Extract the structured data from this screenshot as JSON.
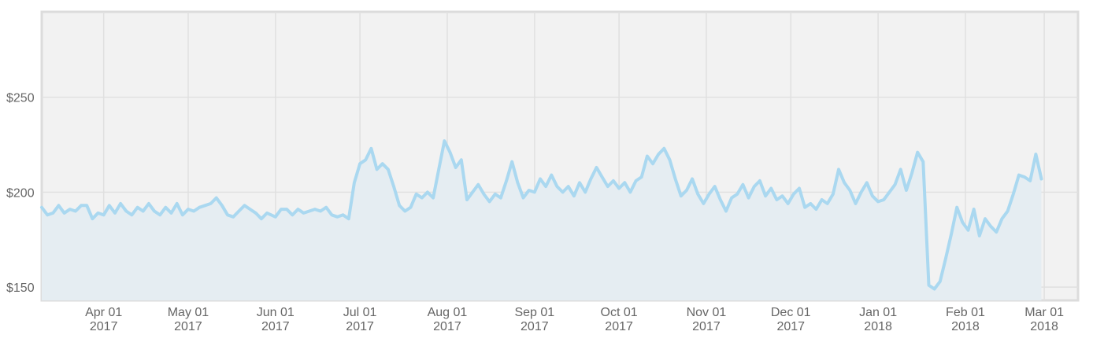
{
  "chart_data": {
    "type": "area",
    "title": "",
    "xlabel": "",
    "ylabel": "",
    "y_prefix": "$",
    "ylim": [
      143,
      295
    ],
    "xlim": [
      "2017-03-10",
      "2018-03-13"
    ],
    "grid": true,
    "yticks": [
      {
        "value": 150,
        "label": "$150"
      },
      {
        "value": 200,
        "label": "$200"
      },
      {
        "value": 250,
        "label": "$250"
      }
    ],
    "xticks": [
      {
        "date": "2017-04-01",
        "month": "Apr 01",
        "year": "2017"
      },
      {
        "date": "2017-05-01",
        "month": "May 01",
        "year": "2017"
      },
      {
        "date": "2017-06-01",
        "month": "Jun 01",
        "year": "2017"
      },
      {
        "date": "2017-07-01",
        "month": "Jul 01",
        "year": "2017"
      },
      {
        "date": "2017-08-01",
        "month": "Aug 01",
        "year": "2017"
      },
      {
        "date": "2017-09-01",
        "month": "Sep 01",
        "year": "2017"
      },
      {
        "date": "2017-10-01",
        "month": "Oct 01",
        "year": "2017"
      },
      {
        "date": "2017-11-01",
        "month": "Nov 01",
        "year": "2017"
      },
      {
        "date": "2017-12-01",
        "month": "Dec 01",
        "year": "2017"
      },
      {
        "date": "2018-01-01",
        "month": "Jan 01",
        "year": "2018"
      },
      {
        "date": "2018-02-01",
        "month": "Feb 01",
        "year": "2018"
      },
      {
        "date": "2018-03-01",
        "month": "Mar 01",
        "year": "2018"
      }
    ],
    "colors": {
      "line": "#aad8f0",
      "area": "#e5edf2",
      "plot_bg": "#f2f2f2",
      "grid": "#e0e0e0",
      "border": "#dcdcdc"
    },
    "series": [
      {
        "points": [
          [
            "2017-03-10",
            192
          ],
          [
            "2017-03-12",
            188
          ],
          [
            "2017-03-14",
            189
          ],
          [
            "2017-03-16",
            193
          ],
          [
            "2017-03-18",
            189
          ],
          [
            "2017-03-20",
            191
          ],
          [
            "2017-03-22",
            190
          ],
          [
            "2017-03-24",
            193
          ],
          [
            "2017-03-26",
            193
          ],
          [
            "2017-03-28",
            186
          ],
          [
            "2017-03-30",
            189
          ],
          [
            "2017-04-01",
            188
          ],
          [
            "2017-04-03",
            193
          ],
          [
            "2017-04-05",
            189
          ],
          [
            "2017-04-07",
            194
          ],
          [
            "2017-04-09",
            190
          ],
          [
            "2017-04-11",
            188
          ],
          [
            "2017-04-13",
            192
          ],
          [
            "2017-04-15",
            190
          ],
          [
            "2017-04-17",
            194
          ],
          [
            "2017-04-19",
            190
          ],
          [
            "2017-04-21",
            188
          ],
          [
            "2017-04-23",
            192
          ],
          [
            "2017-04-25",
            189
          ],
          [
            "2017-04-27",
            194
          ],
          [
            "2017-04-29",
            188
          ],
          [
            "2017-05-01",
            191
          ],
          [
            "2017-05-03",
            190
          ],
          [
            "2017-05-05",
            192
          ],
          [
            "2017-05-07",
            193
          ],
          [
            "2017-05-09",
            194
          ],
          [
            "2017-05-11",
            197
          ],
          [
            "2017-05-13",
            193
          ],
          [
            "2017-05-15",
            188
          ],
          [
            "2017-05-17",
            187
          ],
          [
            "2017-05-19",
            190
          ],
          [
            "2017-05-21",
            193
          ],
          [
            "2017-05-23",
            191
          ],
          [
            "2017-05-25",
            189
          ],
          [
            "2017-05-27",
            186
          ],
          [
            "2017-05-29",
            189
          ],
          [
            "2017-06-01",
            187
          ],
          [
            "2017-06-03",
            191
          ],
          [
            "2017-06-05",
            191
          ],
          [
            "2017-06-07",
            188
          ],
          [
            "2017-06-09",
            191
          ],
          [
            "2017-06-11",
            189
          ],
          [
            "2017-06-13",
            190
          ],
          [
            "2017-06-15",
            191
          ],
          [
            "2017-06-17",
            190
          ],
          [
            "2017-06-19",
            192
          ],
          [
            "2017-06-21",
            188
          ],
          [
            "2017-06-23",
            187
          ],
          [
            "2017-06-25",
            188
          ],
          [
            "2017-06-27",
            186
          ],
          [
            "2017-06-29",
            205
          ],
          [
            "2017-07-01",
            215
          ],
          [
            "2017-07-03",
            217
          ],
          [
            "2017-07-05",
            223
          ],
          [
            "2017-07-07",
            212
          ],
          [
            "2017-07-09",
            215
          ],
          [
            "2017-07-11",
            212
          ],
          [
            "2017-07-13",
            203
          ],
          [
            "2017-07-15",
            193
          ],
          [
            "2017-07-17",
            190
          ],
          [
            "2017-07-19",
            192
          ],
          [
            "2017-07-21",
            199
          ],
          [
            "2017-07-23",
            197
          ],
          [
            "2017-07-25",
            200
          ],
          [
            "2017-07-27",
            197
          ],
          [
            "2017-07-29",
            212
          ],
          [
            "2017-07-31",
            227
          ],
          [
            "2017-08-02",
            221
          ],
          [
            "2017-08-04",
            213
          ],
          [
            "2017-08-06",
            217
          ],
          [
            "2017-08-08",
            196
          ],
          [
            "2017-08-10",
            200
          ],
          [
            "2017-08-12",
            204
          ],
          [
            "2017-08-14",
            199
          ],
          [
            "2017-08-16",
            195
          ],
          [
            "2017-08-18",
            199
          ],
          [
            "2017-08-20",
            197
          ],
          [
            "2017-08-22",
            206
          ],
          [
            "2017-08-24",
            216
          ],
          [
            "2017-08-26",
            205
          ],
          [
            "2017-08-28",
            197
          ],
          [
            "2017-08-30",
            201
          ],
          [
            "2017-09-01",
            200
          ],
          [
            "2017-09-03",
            207
          ],
          [
            "2017-09-05",
            203
          ],
          [
            "2017-09-07",
            209
          ],
          [
            "2017-09-09",
            203
          ],
          [
            "2017-09-11",
            200
          ],
          [
            "2017-09-13",
            203
          ],
          [
            "2017-09-15",
            198
          ],
          [
            "2017-09-17",
            205
          ],
          [
            "2017-09-19",
            200
          ],
          [
            "2017-09-21",
            207
          ],
          [
            "2017-09-23",
            213
          ],
          [
            "2017-09-25",
            208
          ],
          [
            "2017-09-27",
            203
          ],
          [
            "2017-09-29",
            206
          ],
          [
            "2017-10-01",
            202
          ],
          [
            "2017-10-03",
            205
          ],
          [
            "2017-10-05",
            200
          ],
          [
            "2017-10-07",
            206
          ],
          [
            "2017-10-09",
            208
          ],
          [
            "2017-10-11",
            219
          ],
          [
            "2017-10-13",
            215
          ],
          [
            "2017-10-15",
            220
          ],
          [
            "2017-10-17",
            223
          ],
          [
            "2017-10-19",
            217
          ],
          [
            "2017-10-21",
            207
          ],
          [
            "2017-10-23",
            198
          ],
          [
            "2017-10-25",
            201
          ],
          [
            "2017-10-27",
            207
          ],
          [
            "2017-10-29",
            199
          ],
          [
            "2017-10-31",
            194
          ],
          [
            "2017-11-02",
            199
          ],
          [
            "2017-11-04",
            203
          ],
          [
            "2017-11-06",
            196
          ],
          [
            "2017-11-08",
            190
          ],
          [
            "2017-11-10",
            197
          ],
          [
            "2017-11-12",
            199
          ],
          [
            "2017-11-14",
            204
          ],
          [
            "2017-11-16",
            197
          ],
          [
            "2017-11-18",
            203
          ],
          [
            "2017-11-20",
            206
          ],
          [
            "2017-11-22",
            198
          ],
          [
            "2017-11-24",
            202
          ],
          [
            "2017-11-26",
            196
          ],
          [
            "2017-11-28",
            198
          ],
          [
            "2017-11-30",
            194
          ],
          [
            "2017-12-02",
            199
          ],
          [
            "2017-12-04",
            202
          ],
          [
            "2017-12-06",
            192
          ],
          [
            "2017-12-08",
            194
          ],
          [
            "2017-12-10",
            191
          ],
          [
            "2017-12-12",
            196
          ],
          [
            "2017-12-14",
            194
          ],
          [
            "2017-12-16",
            199
          ],
          [
            "2017-12-18",
            212
          ],
          [
            "2017-12-20",
            205
          ],
          [
            "2017-12-22",
            201
          ],
          [
            "2017-12-24",
            194
          ],
          [
            "2017-12-26",
            200
          ],
          [
            "2017-12-28",
            205
          ],
          [
            "2017-12-30",
            198
          ],
          [
            "2018-01-01",
            195
          ],
          [
            "2018-01-03",
            196
          ],
          [
            "2018-01-05",
            200
          ],
          [
            "2018-01-07",
            204
          ],
          [
            "2018-01-09",
            212
          ],
          [
            "2018-01-11",
            201
          ],
          [
            "2018-01-13",
            210
          ],
          [
            "2018-01-15",
            221
          ],
          [
            "2018-01-17",
            216
          ],
          [
            "2018-01-19",
            151
          ],
          [
            "2018-01-21",
            149
          ],
          [
            "2018-01-23",
            153
          ],
          [
            "2018-01-25",
            165
          ],
          [
            "2018-01-27",
            178
          ],
          [
            "2018-01-29",
            192
          ],
          [
            "2018-01-31",
            184
          ],
          [
            "2018-02-02",
            180
          ],
          [
            "2018-02-04",
            191
          ],
          [
            "2018-02-06",
            177
          ],
          [
            "2018-02-08",
            186
          ],
          [
            "2018-02-10",
            182
          ],
          [
            "2018-02-12",
            179
          ],
          [
            "2018-02-14",
            186
          ],
          [
            "2018-02-16",
            190
          ],
          [
            "2018-02-18",
            199
          ],
          [
            "2018-02-20",
            209
          ],
          [
            "2018-02-22",
            208
          ],
          [
            "2018-02-24",
            206
          ],
          [
            "2018-02-26",
            220
          ],
          [
            "2018-02-28",
            207
          ]
        ]
      }
    ]
  }
}
